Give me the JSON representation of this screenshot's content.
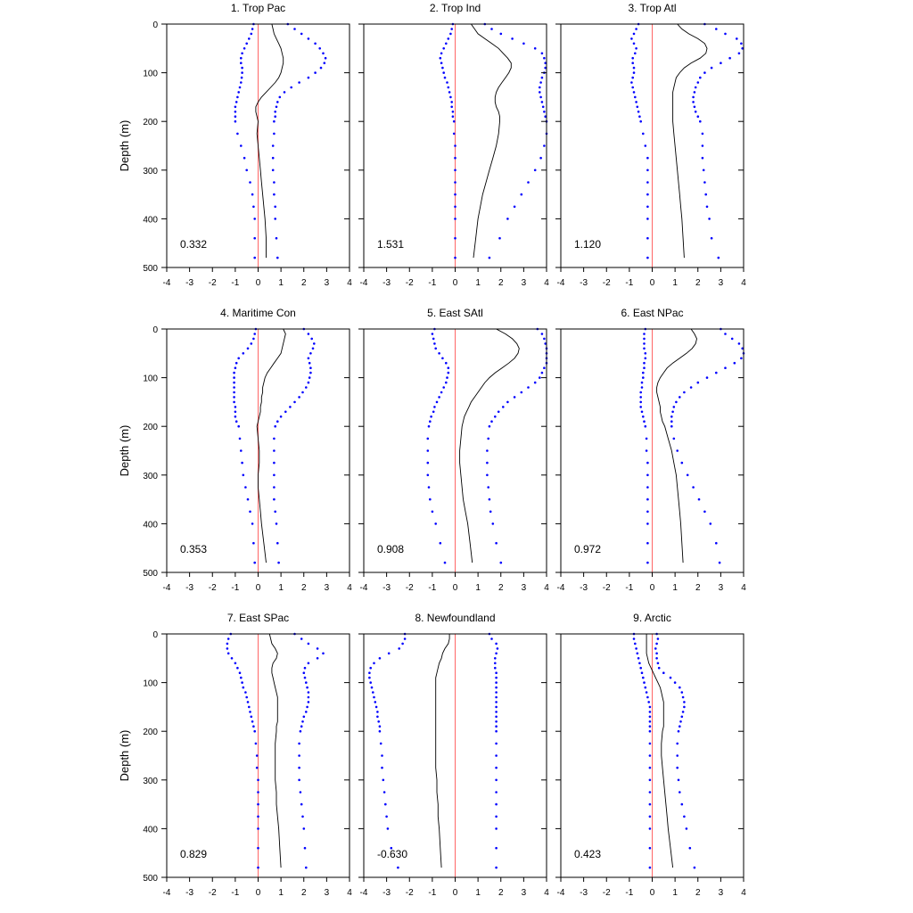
{
  "chart_data": {
    "type": "line",
    "ylabel": "Depth (m)",
    "xlim": [
      -4,
      4
    ],
    "ylim": [
      0,
      500
    ],
    "y_inverted": true,
    "x_ticks": [
      -4,
      -3,
      -2,
      -1,
      0,
      1,
      2,
      3,
      4
    ],
    "y_ticks": [
      0,
      100,
      200,
      300,
      400,
      500
    ],
    "grid": false,
    "colors": {
      "mean": "#000000",
      "bounds": "#0000ff",
      "zero_line": "#ff6666",
      "axis": "#000000"
    },
    "depths": [
      0,
      10,
      20,
      30,
      40,
      50,
      60,
      70,
      80,
      90,
      100,
      110,
      120,
      130,
      140,
      150,
      160,
      170,
      180,
      190,
      200,
      225,
      250,
      275,
      300,
      325,
      350,
      375,
      400,
      440,
      480
    ],
    "panels": [
      {
        "title": "1. Trop Pac",
        "annotation": "0.332",
        "mean": [
          0.6,
          0.65,
          0.7,
          0.8,
          0.9,
          1.0,
          1.05,
          1.1,
          1.1,
          1.05,
          1.0,
          0.9,
          0.75,
          0.55,
          0.35,
          0.15,
          0.0,
          -0.1,
          -0.1,
          -0.05,
          0.0,
          -0.05,
          0.0,
          0.05,
          0.1,
          0.15,
          0.2,
          0.25,
          0.3,
          0.35,
          0.35
        ],
        "lower": [
          -0.2,
          -0.25,
          -0.3,
          -0.4,
          -0.5,
          -0.6,
          -0.7,
          -0.75,
          -0.75,
          -0.7,
          -0.7,
          -0.72,
          -0.75,
          -0.8,
          -0.85,
          -0.9,
          -0.95,
          -1.0,
          -1.0,
          -1.0,
          -1.0,
          -0.9,
          -0.75,
          -0.6,
          -0.5,
          -0.35,
          -0.25,
          -0.2,
          -0.15,
          -0.15,
          -0.15
        ],
        "upper": [
          1.3,
          1.6,
          1.9,
          2.2,
          2.5,
          2.7,
          2.85,
          2.95,
          2.9,
          2.75,
          2.5,
          2.2,
          1.8,
          1.45,
          1.15,
          0.95,
          0.85,
          0.8,
          0.75,
          0.75,
          0.7,
          0.7,
          0.65,
          0.65,
          0.65,
          0.7,
          0.7,
          0.75,
          0.75,
          0.8,
          0.85
        ]
      },
      {
        "title": "2. Trop Ind",
        "annotation": "1.531",
        "mean": [
          0.7,
          0.85,
          1.0,
          1.3,
          1.6,
          1.9,
          2.1,
          2.3,
          2.45,
          2.45,
          2.35,
          2.2,
          2.05,
          1.9,
          1.8,
          1.75,
          1.75,
          1.8,
          1.9,
          1.95,
          1.95,
          1.9,
          1.8,
          1.65,
          1.5,
          1.35,
          1.2,
          1.1,
          1.0,
          0.9,
          0.8
        ],
        "lower": [
          -0.1,
          -0.15,
          -0.2,
          -0.3,
          -0.4,
          -0.5,
          -0.6,
          -0.65,
          -0.6,
          -0.55,
          -0.5,
          -0.45,
          -0.35,
          -0.3,
          -0.25,
          -0.2,
          -0.15,
          -0.15,
          -0.1,
          -0.1,
          -0.05,
          -0.05,
          0.0,
          0.0,
          0.0,
          0.0,
          0.0,
          0.0,
          0.0,
          0.0,
          0.0
        ],
        "upper": [
          1.3,
          1.6,
          2.0,
          2.5,
          3.0,
          3.5,
          3.8,
          3.9,
          3.95,
          3.95,
          3.9,
          3.8,
          3.75,
          3.7,
          3.7,
          3.75,
          3.8,
          3.85,
          3.9,
          3.95,
          4.0,
          4.0,
          3.9,
          3.75,
          3.5,
          3.2,
          2.9,
          2.6,
          2.3,
          1.95,
          1.5
        ]
      },
      {
        "title": "3. Trop Atl",
        "annotation": "1.120",
        "mean": [
          1.1,
          1.3,
          1.6,
          2.0,
          2.3,
          2.4,
          2.35,
          2.1,
          1.7,
          1.4,
          1.2,
          1.05,
          1.0,
          0.95,
          0.9,
          0.9,
          0.9,
          0.9,
          0.9,
          0.9,
          0.9,
          0.95,
          1.0,
          1.05,
          1.1,
          1.15,
          1.2,
          1.25,
          1.3,
          1.35,
          1.4
        ],
        "lower": [
          -0.6,
          -0.7,
          -0.8,
          -0.9,
          -0.8,
          -0.7,
          -0.75,
          -0.85,
          -0.85,
          -0.8,
          -0.8,
          -0.85,
          -0.9,
          -0.85,
          -0.8,
          -0.75,
          -0.7,
          -0.65,
          -0.6,
          -0.55,
          -0.5,
          -0.4,
          -0.3,
          -0.2,
          -0.2,
          -0.2,
          -0.2,
          -0.2,
          -0.2,
          -0.2,
          -0.2
        ],
        "upper": [
          2.3,
          2.8,
          3.2,
          3.7,
          3.9,
          3.95,
          3.8,
          3.4,
          3.0,
          2.6,
          2.3,
          2.1,
          2.0,
          1.9,
          1.85,
          1.8,
          1.8,
          1.85,
          1.9,
          2.0,
          2.1,
          2.2,
          2.2,
          2.2,
          2.25,
          2.3,
          2.35,
          2.4,
          2.5,
          2.6,
          2.9
        ]
      },
      {
        "title": "4. Maritime Con",
        "annotation": "0.353",
        "mean": [
          1.1,
          1.2,
          1.15,
          1.1,
          1.05,
          1.0,
          0.85,
          0.7,
          0.55,
          0.4,
          0.3,
          0.25,
          0.2,
          0.2,
          0.15,
          0.15,
          0.1,
          0.1,
          0.05,
          0.0,
          -0.05,
          0.0,
          0.05,
          0.05,
          0.0,
          0.0,
          0.05,
          0.1,
          0.15,
          0.25,
          0.35
        ],
        "lower": [
          -0.1,
          -0.15,
          -0.2,
          -0.3,
          -0.45,
          -0.65,
          -0.85,
          -0.95,
          -1.0,
          -1.05,
          -1.05,
          -1.05,
          -1.05,
          -1.05,
          -1.05,
          -1.05,
          -1.0,
          -1.0,
          -1.0,
          -0.95,
          -0.85,
          -0.8,
          -0.75,
          -0.7,
          -0.65,
          -0.55,
          -0.45,
          -0.35,
          -0.25,
          -0.2,
          -0.15
        ],
        "upper": [
          2.0,
          2.2,
          2.35,
          2.45,
          2.4,
          2.3,
          2.2,
          2.25,
          2.3,
          2.3,
          2.25,
          2.2,
          2.1,
          1.95,
          1.8,
          1.6,
          1.4,
          1.2,
          1.0,
          0.85,
          0.75,
          0.7,
          0.7,
          0.7,
          0.7,
          0.7,
          0.7,
          0.75,
          0.8,
          0.85,
          0.9
        ]
      },
      {
        "title": "5. East SAtl",
        "annotation": "0.908",
        "mean": [
          1.8,
          2.2,
          2.5,
          2.7,
          2.8,
          2.75,
          2.6,
          2.35,
          2.05,
          1.75,
          1.5,
          1.3,
          1.15,
          1.0,
          0.85,
          0.7,
          0.6,
          0.5,
          0.4,
          0.35,
          0.3,
          0.25,
          0.2,
          0.2,
          0.25,
          0.3,
          0.35,
          0.45,
          0.55,
          0.65,
          0.75
        ],
        "lower": [
          -0.9,
          -1.0,
          -0.95,
          -0.9,
          -0.85,
          -0.7,
          -0.55,
          -0.4,
          -0.3,
          -0.3,
          -0.35,
          -0.4,
          -0.5,
          -0.6,
          -0.7,
          -0.8,
          -0.9,
          -0.95,
          -1.05,
          -1.1,
          -1.15,
          -1.2,
          -1.2,
          -1.2,
          -1.2,
          -1.15,
          -1.1,
          -1.0,
          -0.85,
          -0.65,
          -0.45
        ],
        "upper": [
          3.6,
          3.8,
          3.9,
          3.95,
          4.0,
          4.0,
          4.0,
          4.0,
          3.9,
          3.8,
          3.7,
          3.5,
          3.2,
          2.9,
          2.6,
          2.3,
          2.1,
          1.9,
          1.75,
          1.6,
          1.5,
          1.45,
          1.4,
          1.4,
          1.4,
          1.45,
          1.5,
          1.55,
          1.65,
          1.8,
          2.0
        ]
      },
      {
        "title": "6. East NPac",
        "annotation": "0.972",
        "mean": [
          1.7,
          1.85,
          1.95,
          1.9,
          1.75,
          1.5,
          1.2,
          0.9,
          0.65,
          0.5,
          0.35,
          0.25,
          0.2,
          0.2,
          0.25,
          0.3,
          0.35,
          0.35,
          0.4,
          0.45,
          0.55,
          0.7,
          0.85,
          0.95,
          1.05,
          1.1,
          1.15,
          1.2,
          1.25,
          1.3,
          1.35
        ],
        "lower": [
          -0.3,
          -0.35,
          -0.35,
          -0.35,
          -0.35,
          -0.3,
          -0.3,
          -0.35,
          -0.35,
          -0.4,
          -0.4,
          -0.45,
          -0.45,
          -0.5,
          -0.5,
          -0.5,
          -0.5,
          -0.45,
          -0.4,
          -0.35,
          -0.3,
          -0.25,
          -0.25,
          -0.2,
          -0.2,
          -0.2,
          -0.2,
          -0.2,
          -0.2,
          -0.2,
          -0.2
        ],
        "upper": [
          3.0,
          3.2,
          3.5,
          3.8,
          3.95,
          4.0,
          3.9,
          3.6,
          3.2,
          2.8,
          2.4,
          2.0,
          1.7,
          1.4,
          1.2,
          1.05,
          0.95,
          0.9,
          0.85,
          0.85,
          0.85,
          0.95,
          1.1,
          1.3,
          1.55,
          1.8,
          2.05,
          2.3,
          2.55,
          2.8,
          2.95
        ]
      },
      {
        "title": "7. East SPac",
        "annotation": "0.829",
        "mean": [
          0.5,
          0.55,
          0.6,
          0.75,
          0.85,
          0.8,
          0.65,
          0.6,
          0.6,
          0.65,
          0.7,
          0.75,
          0.8,
          0.85,
          0.85,
          0.85,
          0.85,
          0.85,
          0.85,
          0.8,
          0.8,
          0.75,
          0.75,
          0.75,
          0.75,
          0.8,
          0.8,
          0.85,
          0.9,
          0.95,
          1.0
        ],
        "lower": [
          -1.2,
          -1.3,
          -1.35,
          -1.35,
          -1.3,
          -1.15,
          -1.0,
          -0.9,
          -0.8,
          -0.75,
          -0.7,
          -0.65,
          -0.55,
          -0.5,
          -0.45,
          -0.4,
          -0.35,
          -0.3,
          -0.25,
          -0.2,
          -0.15,
          -0.1,
          -0.05,
          -0.05,
          0.0,
          0.0,
          0.0,
          0.0,
          0.0,
          0.0,
          0.0
        ],
        "upper": [
          1.6,
          1.9,
          2.2,
          2.6,
          2.85,
          2.6,
          2.2,
          2.05,
          2.0,
          2.05,
          2.1,
          2.15,
          2.2,
          2.2,
          2.2,
          2.15,
          2.1,
          2.0,
          1.95,
          1.9,
          1.85,
          1.8,
          1.8,
          1.8,
          1.8,
          1.85,
          1.9,
          1.95,
          2.0,
          2.05,
          2.1
        ]
      },
      {
        "title": "8. Newfoundland",
        "annotation": "-0.630",
        "mean": [
          -0.25,
          -0.25,
          -0.3,
          -0.45,
          -0.55,
          -0.6,
          -0.7,
          -0.75,
          -0.8,
          -0.85,
          -0.85,
          -0.85,
          -0.85,
          -0.85,
          -0.85,
          -0.85,
          -0.85,
          -0.85,
          -0.85,
          -0.85,
          -0.85,
          -0.85,
          -0.85,
          -0.85,
          -0.8,
          -0.8,
          -0.75,
          -0.75,
          -0.7,
          -0.65,
          -0.6
        ],
        "lower": [
          -2.2,
          -2.2,
          -2.3,
          -2.45,
          -2.9,
          -3.3,
          -3.55,
          -3.7,
          -3.75,
          -3.75,
          -3.7,
          -3.65,
          -3.6,
          -3.55,
          -3.5,
          -3.45,
          -3.4,
          -3.4,
          -3.35,
          -3.3,
          -3.3,
          -3.25,
          -3.2,
          -3.2,
          -3.15,
          -3.1,
          -3.05,
          -3.0,
          -2.95,
          -2.8,
          -2.5
        ],
        "upper": [
          1.5,
          1.6,
          1.8,
          1.85,
          1.8,
          1.75,
          1.75,
          1.75,
          1.8,
          1.8,
          1.8,
          1.8,
          1.8,
          1.8,
          1.8,
          1.8,
          1.8,
          1.8,
          1.8,
          1.8,
          1.8,
          1.8,
          1.8,
          1.8,
          1.8,
          1.8,
          1.8,
          1.8,
          1.8,
          1.8,
          1.8
        ]
      },
      {
        "title": "9. Arctic",
        "annotation": "0.423",
        "mean": [
          -0.25,
          -0.25,
          -0.25,
          -0.25,
          -0.25,
          -0.2,
          -0.15,
          -0.05,
          0.05,
          0.15,
          0.25,
          0.35,
          0.4,
          0.45,
          0.5,
          0.5,
          0.5,
          0.5,
          0.5,
          0.5,
          0.45,
          0.4,
          0.4,
          0.45,
          0.5,
          0.55,
          0.6,
          0.65,
          0.7,
          0.8,
          0.9
        ],
        "lower": [
          -0.8,
          -0.8,
          -0.75,
          -0.7,
          -0.65,
          -0.6,
          -0.55,
          -0.5,
          -0.45,
          -0.4,
          -0.35,
          -0.3,
          -0.25,
          -0.2,
          -0.15,
          -0.1,
          -0.1,
          -0.1,
          -0.1,
          -0.1,
          -0.1,
          -0.1,
          -0.1,
          -0.1,
          -0.1,
          -0.1,
          -0.1,
          -0.1,
          -0.1,
          -0.1,
          -0.1
        ],
        "upper": [
          0.2,
          0.25,
          0.2,
          0.15,
          0.2,
          0.2,
          0.25,
          0.3,
          0.5,
          0.8,
          1.0,
          1.2,
          1.3,
          1.35,
          1.4,
          1.4,
          1.35,
          1.3,
          1.25,
          1.2,
          1.15,
          1.1,
          1.1,
          1.1,
          1.15,
          1.2,
          1.3,
          1.4,
          1.5,
          1.65,
          1.85
        ]
      }
    ]
  }
}
